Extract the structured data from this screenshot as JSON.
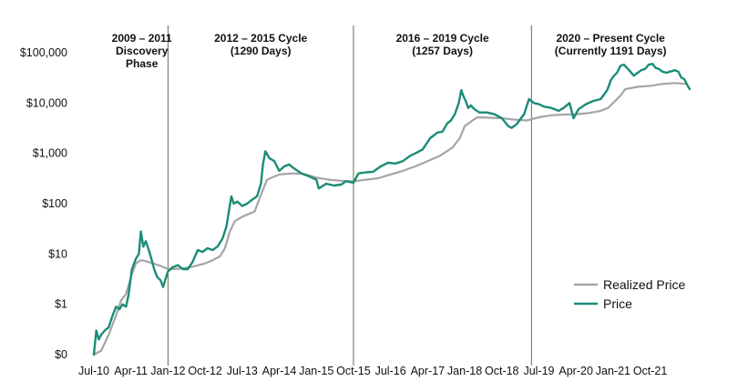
{
  "chart_data": {
    "type": "line",
    "title": "",
    "xlabel": "",
    "ylabel": "",
    "yscale": "log",
    "ylim": [
      0.1,
      100000
    ],
    "y_tick_values": [
      0.1,
      1,
      10,
      100,
      1000,
      10000,
      100000
    ],
    "y_tick_labels": [
      "$0",
      "$1",
      "$10",
      "$100",
      "$1,000",
      "$10,000",
      "$100,000"
    ],
    "x_range": [
      2010.5,
      2022.55
    ],
    "x_tick_values": [
      2010.5,
      2011.25,
      2012.0,
      2012.75,
      2013.5,
      2014.25,
      2015.0,
      2015.75,
      2016.5,
      2017.25,
      2018.0,
      2018.75,
      2019.5,
      2020.25,
      2021.0,
      2021.75
    ],
    "x_tick_labels": [
      "Jul-10",
      "Apr-11",
      "Jan-12",
      "Oct-12",
      "Jul-13",
      "Apr-14",
      "Jan-15",
      "Oct-15",
      "Jul-16",
      "Apr-17",
      "Jan-18",
      "Oct-18",
      "Jul-19",
      "Apr-20",
      "Jan-21",
      "Oct-21"
    ],
    "cycles": [
      {
        "label_lines": [
          "2009 – 2011",
          "Discovery",
          "Phase"
        ],
        "start": 2010.5,
        "end": 2012.0
      },
      {
        "label_lines": [
          "2012 – 2015 Cycle",
          "(1290 Days)"
        ],
        "start": 2012.0,
        "end": 2015.75
      },
      {
        "label_lines": [
          "2016 – 2019 Cycle",
          "(1257 Days)"
        ],
        "start": 2015.75,
        "end": 2019.35
      },
      {
        "label_lines": [
          "2020 – Present Cycle",
          "(Currently 1191 Days)"
        ],
        "start": 2019.35,
        "end": 2022.55
      }
    ],
    "cycle_divider_dates": [
      2012.0,
      2015.75,
      2019.35
    ],
    "legend_position": "bottom-right",
    "series": [
      {
        "name": "Realized Price",
        "color": "#a5a5a5",
        "x": [
          2010.5,
          2010.65,
          2010.8,
          2010.95,
          2011.05,
          2011.15,
          2011.25,
          2011.35,
          2011.45,
          2011.55,
          2011.7,
          2011.85,
          2012.0,
          2012.25,
          2012.5,
          2012.75,
          2012.9,
          2013.05,
          2013.15,
          2013.25,
          2013.35,
          2013.5,
          2013.75,
          2013.88,
          2014.0,
          2014.25,
          2014.5,
          2014.75,
          2015.0,
          2015.25,
          2015.5,
          2015.75,
          2016.0,
          2016.25,
          2016.5,
          2016.75,
          2017.0,
          2017.25,
          2017.5,
          2017.75,
          2017.9,
          2018.0,
          2018.25,
          2018.5,
          2018.75,
          2019.0,
          2019.25,
          2019.5,
          2019.75,
          2020.0,
          2020.25,
          2020.5,
          2020.75,
          2020.9,
          2021.0,
          2021.15,
          2021.25,
          2021.5,
          2021.75,
          2022.0,
          2022.25,
          2022.5
        ],
        "values": [
          0.1,
          0.12,
          0.25,
          0.6,
          1.2,
          1.6,
          3.5,
          6.5,
          7.5,
          7.2,
          6.5,
          5.8,
          5.0,
          5.1,
          5.6,
          6.5,
          7.5,
          9,
          13,
          28,
          45,
          55,
          70,
          150,
          300,
          380,
          400,
          390,
          330,
          300,
          285,
          280,
          300,
          320,
          380,
          450,
          550,
          700,
          900,
          1300,
          2000,
          3500,
          5200,
          5100,
          5000,
          4700,
          4500,
          5200,
          5700,
          5900,
          6000,
          6300,
          7000,
          8000,
          10000,
          14000,
          19000,
          21000,
          22000,
          24000,
          25000,
          24000
        ]
      },
      {
        "name": "Price",
        "color": "#1a8c78",
        "x": [
          2010.5,
          2010.55,
          2010.6,
          2010.65,
          2010.72,
          2010.8,
          2010.88,
          2010.95,
          2011.02,
          2011.08,
          2011.15,
          2011.2,
          2011.27,
          2011.35,
          2011.41,
          2011.45,
          2011.5,
          2011.55,
          2011.6,
          2011.65,
          2011.72,
          2011.78,
          2011.85,
          2011.9,
          2011.95,
          2012.0,
          2012.1,
          2012.2,
          2012.3,
          2012.4,
          2012.5,
          2012.6,
          2012.7,
          2012.8,
          2012.9,
          2013.0,
          2013.1,
          2013.18,
          2013.24,
          2013.28,
          2013.33,
          2013.4,
          2013.5,
          2013.6,
          2013.7,
          2013.8,
          2013.88,
          2013.92,
          2013.97,
          2014.05,
          2014.15,
          2014.25,
          2014.35,
          2014.45,
          2014.55,
          2014.7,
          2014.85,
          2015.0,
          2015.05,
          2015.2,
          2015.35,
          2015.5,
          2015.6,
          2015.75,
          2015.85,
          2016.0,
          2016.15,
          2016.3,
          2016.45,
          2016.6,
          2016.75,
          2016.9,
          2017.0,
          2017.15,
          2017.3,
          2017.45,
          2017.55,
          2017.65,
          2017.72,
          2017.8,
          2017.88,
          2017.93,
          2017.97,
          2018.02,
          2018.07,
          2018.12,
          2018.2,
          2018.3,
          2018.45,
          2018.6,
          2018.75,
          2018.88,
          2018.95,
          2019.05,
          2019.2,
          2019.3,
          2019.4,
          2019.5,
          2019.6,
          2019.75,
          2019.9,
          2020.0,
          2020.12,
          2020.2,
          2020.3,
          2020.45,
          2020.6,
          2020.75,
          2020.88,
          2020.96,
          2021.02,
          2021.08,
          2021.15,
          2021.22,
          2021.28,
          2021.35,
          2021.42,
          2021.5,
          2021.57,
          2021.65,
          2021.72,
          2021.8,
          2021.86,
          2021.92,
          2022.0,
          2022.08,
          2022.15,
          2022.25,
          2022.32,
          2022.38,
          2022.44,
          2022.48,
          2022.52,
          2022.55
        ],
        "values": [
          0.1,
          0.3,
          0.2,
          0.25,
          0.3,
          0.35,
          0.6,
          0.9,
          0.8,
          1.0,
          0.9,
          1.5,
          5,
          8,
          10,
          28,
          14,
          18,
          13,
          9,
          5,
          3.5,
          3,
          2.2,
          3.2,
          4.5,
          5.5,
          6,
          5,
          5,
          7,
          12,
          11,
          13,
          12,
          14,
          20,
          35,
          80,
          140,
          100,
          110,
          90,
          100,
          120,
          140,
          250,
          600,
          1100,
          800,
          700,
          450,
          550,
          600,
          500,
          400,
          350,
          300,
          200,
          250,
          230,
          240,
          280,
          260,
          400,
          420,
          430,
          550,
          650,
          630,
          700,
          900,
          1000,
          1200,
          2000,
          2600,
          2700,
          4000,
          4500,
          6000,
          10000,
          18000,
          14000,
          11000,
          8000,
          9000,
          7500,
          6500,
          6500,
          6000,
          5000,
          3500,
          3200,
          3800,
          6000,
          12000,
          10000,
          9500,
          8500,
          8000,
          7000,
          8000,
          10000,
          5000,
          7500,
          9500,
          11000,
          12000,
          18000,
          29000,
          35000,
          40000,
          55000,
          58000,
          50000,
          42000,
          35000,
          40000,
          45000,
          48000,
          58000,
          60000,
          50000,
          48000,
          42000,
          40000,
          42000,
          45000,
          42000,
          32000,
          30000,
          25000,
          21000,
          19000
        ]
      }
    ]
  }
}
